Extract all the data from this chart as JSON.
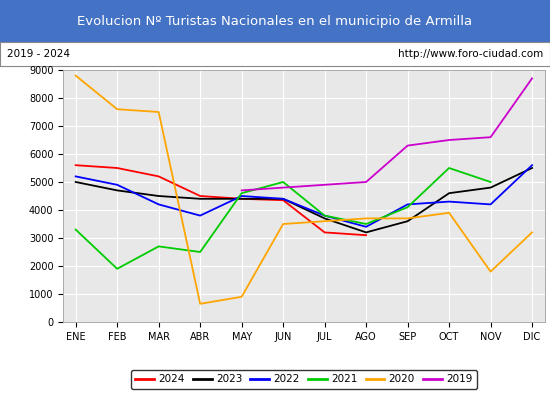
{
  "title": "Evolucion Nº Turistas Nacionales en el municipio de Armilla",
  "subtitle_left": "2019 - 2024",
  "subtitle_right": "http://www.foro-ciudad.com",
  "title_bg_color": "#4472c4",
  "title_text_color": "#ffffff",
  "subtitle_bg_color": "#ffffff",
  "subtitle_text_color": "#000000",
  "plot_bg_color": "#e8e8e8",
  "grid_color": "#ffffff",
  "months": [
    "ENE",
    "FEB",
    "MAR",
    "ABR",
    "MAY",
    "JUN",
    "JUL",
    "AGO",
    "SEP",
    "OCT",
    "NOV",
    "DIC"
  ],
  "ylim": [
    0,
    9000
  ],
  "yticks": [
    0,
    1000,
    2000,
    3000,
    4000,
    5000,
    6000,
    7000,
    8000,
    9000
  ],
  "series": {
    "2024": {
      "color": "#ff0000",
      "data": [
        5600,
        5500,
        5200,
        4500,
        4400,
        4350,
        3200,
        3100,
        null,
        null,
        null,
        null
      ]
    },
    "2023": {
      "color": "#000000",
      "data": [
        5000,
        4700,
        4500,
        4400,
        4400,
        4400,
        3700,
        3200,
        3600,
        4600,
        4800,
        5500
      ]
    },
    "2022": {
      "color": "#0000ff",
      "data": [
        5200,
        4900,
        4200,
        3800,
        4500,
        4400,
        3800,
        3400,
        4200,
        4300,
        4200,
        5600
      ]
    },
    "2021": {
      "color": "#00cc00",
      "data": [
        3300,
        1900,
        2700,
        2500,
        4600,
        5000,
        3800,
        3500,
        4100,
        5500,
        5000,
        null
      ]
    },
    "2020": {
      "color": "#ffa500",
      "data": [
        8800,
        7600,
        7500,
        650,
        900,
        3500,
        3600,
        3700,
        3700,
        3900,
        1800,
        3200
      ]
    },
    "2019": {
      "color": "#cc00cc",
      "data": [
        null,
        null,
        null,
        null,
        4700,
        4800,
        4900,
        5000,
        6300,
        6500,
        6600,
        8700
      ]
    }
  },
  "legend_order": [
    "2024",
    "2023",
    "2022",
    "2021",
    "2020",
    "2019"
  ]
}
